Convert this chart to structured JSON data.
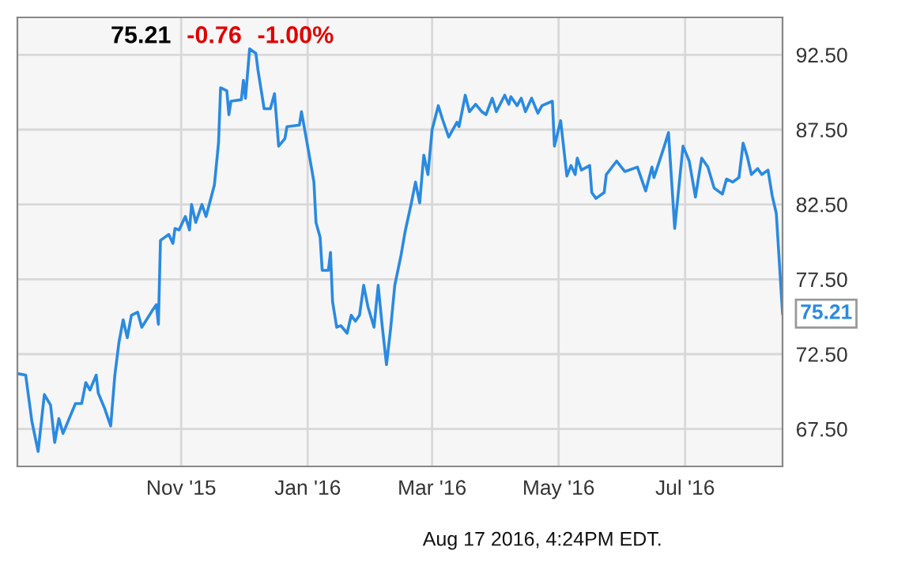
{
  "chart_data": {
    "type": "line",
    "annotations": [
      "75.21",
      "-0.76",
      "-1.00%",
      "Aug 17 2016, 4:24PM EDT.",
      {
        "text": "75.21",
        "x": "2016-08-17",
        "y": 75.21
      }
    ],
    "x": [
      "2015-08-14",
      "2015-08-18",
      "2015-08-21",
      "2015-08-24",
      "2015-08-27",
      "2015-08-30",
      "2015-09-01",
      "2015-09-03",
      "2015-09-05",
      "2015-09-08",
      "2015-09-11",
      "2015-09-14",
      "2015-09-16",
      "2015-09-18",
      "2015-09-21",
      "2015-09-22",
      "2015-09-25",
      "2015-09-28",
      "2015-09-30",
      "2015-10-02",
      "2015-10-04",
      "2015-10-06",
      "2015-10-08",
      "2015-10-11",
      "2015-10-13",
      "2015-10-18",
      "2015-10-20",
      "2015-10-21",
      "2015-10-22",
      "2015-10-26",
      "2015-10-28",
      "2015-10-29",
      "2015-10-31",
      "2015-11-03",
      "2015-11-05",
      "2015-11-06",
      "2015-11-08",
      "2015-11-11",
      "2015-11-13",
      "2015-11-17",
      "2015-11-19",
      "2015-11-20",
      "2015-11-23",
      "2015-11-24",
      "2015-11-25",
      "2015-11-30",
      "2015-12-01",
      "2015-12-02",
      "2015-12-04",
      "2015-12-07",
      "2015-12-08",
      "2015-12-11",
      "2015-12-14",
      "2015-12-16",
      "2015-12-18",
      "2015-12-21",
      "2015-12-22",
      "2015-12-28",
      "2015-12-29",
      "2016-01-02",
      "2016-01-04",
      "2016-01-05",
      "2016-01-07",
      "2016-01-08",
      "2016-01-11",
      "2016-01-12",
      "2016-01-13",
      "2016-01-15",
      "2016-01-17",
      "2016-01-20",
      "2016-01-22",
      "2016-01-24",
      "2016-01-26",
      "2016-01-28",
      "2016-01-30",
      "2016-02-02",
      "2016-02-04",
      "2016-02-06",
      "2016-02-08",
      "2016-02-10",
      "2016-02-12",
      "2016-02-15",
      "2016-02-17",
      "2016-02-20",
      "2016-02-22",
      "2016-02-24",
      "2016-02-26",
      "2016-02-28",
      "2016-03-01",
      "2016-03-04",
      "2016-03-06",
      "2016-03-09",
      "2016-03-13",
      "2016-03-14",
      "2016-03-17",
      "2016-03-19",
      "2016-03-22",
      "2016-03-25",
      "2016-03-27",
      "2016-03-30",
      "2016-04-01",
      "2016-04-05",
      "2016-04-07",
      "2016-04-08",
      "2016-04-11",
      "2016-04-13",
      "2016-04-15",
      "2016-04-18",
      "2016-04-21",
      "2016-04-23",
      "2016-04-28",
      "2016-04-29",
      "2016-05-02",
      "2016-05-05",
      "2016-05-07",
      "2016-05-09",
      "2016-05-10",
      "2016-05-12",
      "2016-05-16",
      "2016-05-17",
      "2016-05-19",
      "2016-05-23",
      "2016-05-24",
      "2016-05-29",
      "2016-06-02",
      "2016-06-08",
      "2016-06-12",
      "2016-06-15",
      "2016-06-16",
      "2016-06-21",
      "2016-06-23",
      "2016-06-26",
      "2016-06-30",
      "2016-07-03",
      "2016-07-06",
      "2016-07-09",
      "2016-07-12",
      "2016-07-15",
      "2016-07-19",
      "2016-07-21",
      "2016-07-24",
      "2016-07-27",
      "2016-07-29",
      "2016-07-31",
      "2016-08-02",
      "2016-08-05",
      "2016-08-07",
      "2016-08-10",
      "2016-08-12",
      "2016-08-14",
      "2016-08-17"
    ],
    "series": [
      {
        "color": "#2a8ae0",
        "values": [
          71.2,
          71.1,
          68.0,
          66.0,
          69.8,
          69.1,
          66.6,
          68.2,
          67.2,
          68.2,
          69.2,
          69.2,
          70.6,
          70.1,
          71.1,
          69.9,
          68.9,
          67.7,
          71.1,
          73.3,
          74.8,
          73.6,
          75.1,
          75.3,
          74.3,
          75.4,
          75.8,
          74.5,
          80.1,
          80.5,
          79.9,
          80.9,
          80.8,
          81.7,
          80.8,
          82.5,
          81.3,
          82.5,
          81.7,
          83.8,
          86.6,
          90.3,
          90.1,
          88.5,
          89.4,
          89.5,
          90.8,
          89.6,
          92.9,
          92.6,
          91.5,
          88.9,
          88.9,
          89.9,
          86.4,
          86.9,
          87.7,
          87.8,
          88.7,
          85.6,
          84.0,
          81.3,
          80.3,
          78.1,
          78.1,
          79.3,
          76.0,
          74.3,
          74.4,
          73.9,
          75.1,
          74.7,
          75.1,
          77.1,
          75.7,
          74.3,
          77.1,
          74.3,
          71.8,
          74.2,
          77.1,
          79.1,
          80.7,
          82.6,
          84.0,
          82.6,
          85.8,
          84.5,
          87.5,
          89.1,
          88.2,
          87.0,
          88.0,
          87.7,
          89.8,
          88.7,
          89.2,
          88.7,
          88.5,
          89.6,
          88.7,
          89.8,
          89.2,
          89.7,
          89.1,
          89.6,
          88.7,
          89.6,
          88.6,
          89.1,
          89.4,
          86.4,
          88.1,
          84.4,
          85.1,
          84.5,
          85.6,
          84.8,
          85.1,
          83.3,
          82.9,
          83.3,
          84.5,
          85.4,
          84.7,
          85.0,
          83.4,
          85.0,
          84.3,
          86.4,
          87.3,
          80.9,
          86.4,
          85.4,
          83.0,
          85.6,
          85.0,
          83.6,
          83.2,
          84.2,
          84.0,
          84.3,
          86.6,
          85.7,
          84.5,
          84.9,
          84.5,
          84.8,
          83.1,
          81.9,
          75.21
        ]
      }
    ],
    "xlim": [
      "2015-08-14",
      "2016-08-17"
    ],
    "xticks": [
      {
        "value": "2015-11-01",
        "label": "Nov '15"
      },
      {
        "value": "2016-01-01",
        "label": "Jan '16"
      },
      {
        "value": "2016-03-01",
        "label": "Mar '16"
      },
      {
        "value": "2016-05-01",
        "label": "May '16"
      },
      {
        "value": "2016-07-01",
        "label": "Jul '16"
      }
    ],
    "ylim": [
      65,
      95
    ],
    "yticks": [
      {
        "value": 67.5,
        "label": "67.50"
      },
      {
        "value": 72.5,
        "label": "72.50"
      },
      {
        "value": 77.5,
        "label": "77.50"
      },
      {
        "value": 82.5,
        "label": "82.50"
      },
      {
        "value": 87.5,
        "label": "87.50"
      },
      {
        "value": 92.5,
        "label": "92.50"
      }
    ],
    "grid": true
  }
}
